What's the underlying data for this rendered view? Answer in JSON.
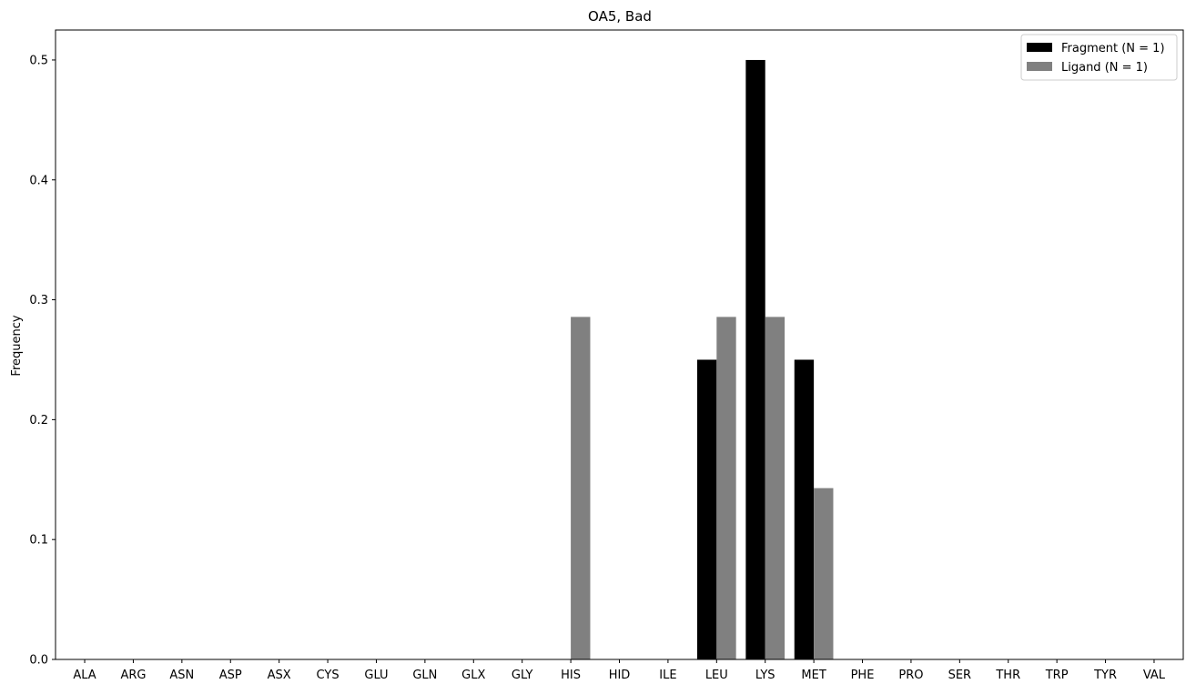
{
  "chart_data": {
    "type": "bar",
    "title": "OA5, Bad",
    "xlabel": "",
    "ylabel": "Frequency",
    "categories": [
      "ALA",
      "ARG",
      "ASN",
      "ASP",
      "ASX",
      "CYS",
      "GLU",
      "GLN",
      "GLX",
      "GLY",
      "HIS",
      "HID",
      "ILE",
      "LEU",
      "LYS",
      "MET",
      "PHE",
      "PRO",
      "SER",
      "THR",
      "TRP",
      "TYR",
      "VAL"
    ],
    "series": [
      {
        "name": "Fragment (N = 1)",
        "color": "#000000",
        "values": [
          0,
          0,
          0,
          0,
          0,
          0,
          0,
          0,
          0,
          0,
          0,
          0,
          0,
          0.25,
          0.5,
          0.25,
          0,
          0,
          0,
          0,
          0,
          0,
          0
        ]
      },
      {
        "name": "Ligand (N = 1)",
        "color": "#808080",
        "values": [
          0,
          0,
          0,
          0,
          0,
          0,
          0,
          0,
          0,
          0,
          0.2857,
          0,
          0,
          0.2857,
          0.2857,
          0.1429,
          0,
          0,
          0,
          0,
          0,
          0,
          0
        ]
      }
    ],
    "ylim": [
      0,
      0.525
    ],
    "yticks": [
      0.0,
      0.1,
      0.2,
      0.3,
      0.4,
      0.5
    ],
    "ytick_labels": [
      "0.0",
      "0.1",
      "0.2",
      "0.3",
      "0.4",
      "0.5"
    ],
    "grid": false,
    "legend_position": "top-right"
  }
}
